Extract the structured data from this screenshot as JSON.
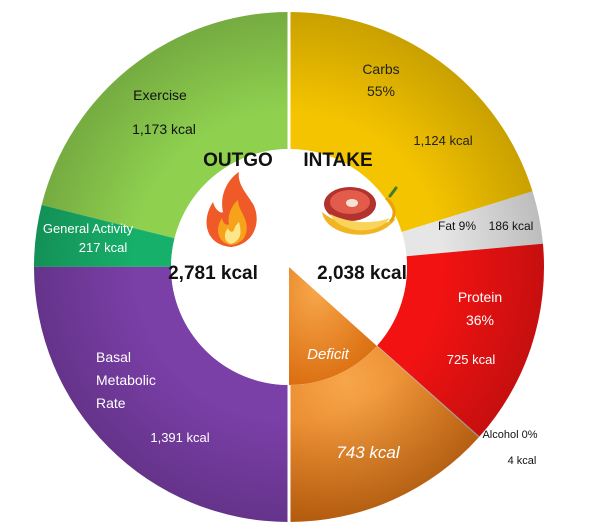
{
  "chart_data": {
    "type": "pie",
    "subtype": "split-donut",
    "halves": [
      {
        "name": "OUTGO",
        "total": "2,781 kcal",
        "segments": [
          {
            "label": [
              "Exercise"
            ],
            "value_text": "1,173 kcal",
            "value": 1173,
            "color": "#8fd14f"
          },
          {
            "label": [
              "General Activity"
            ],
            "value_text": "217 kcal",
            "value": 217,
            "color": "#17b06a"
          },
          {
            "label": [
              "Basal",
              "Metabolic",
              "Rate"
            ],
            "value_text": "1,391 kcal",
            "value": 1391,
            "color": "#7b3fa8"
          }
        ]
      },
      {
        "name": "INTAKE",
        "total": "2,038 kcal",
        "segments": [
          {
            "label": [
              "Carbs",
              "55%"
            ],
            "value_text": "1,124 kcal",
            "value": 1124,
            "color": "#f5c400"
          },
          {
            "label": [
              "Fat 9%"
            ],
            "value_text": "186 kcal",
            "value": 186,
            "color": "#e6e6e6"
          },
          {
            "label": [
              "Protein",
              "36%"
            ],
            "value_text": "725 kcal",
            "value": 725,
            "color": "#f21212"
          },
          {
            "label": [
              "Alcohol 0%"
            ],
            "value_text": "4 kcal",
            "value": 4,
            "color": "#b0b0b0"
          },
          {
            "label": [
              "Deficit"
            ],
            "value_text": "743 kcal",
            "value": 743,
            "color": "#f28c1e"
          }
        ]
      }
    ],
    "icons": [
      "flame-icon",
      "food-icon"
    ]
  }
}
